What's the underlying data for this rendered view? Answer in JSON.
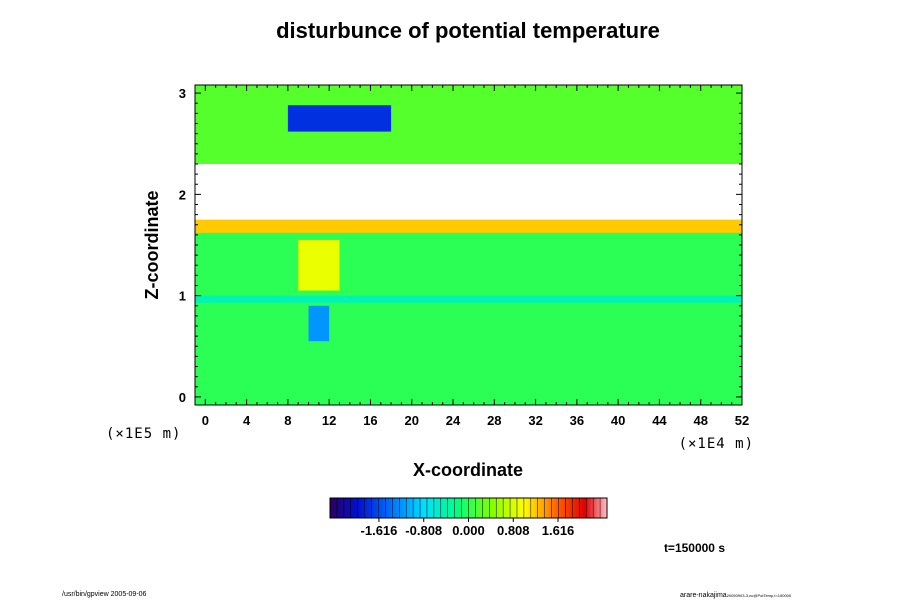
{
  "chart_data": {
    "type": "heatmap",
    "title": "disturbunce of potential temperature",
    "xlabel": "X-coordinate",
    "ylabel": "Z-coordinate",
    "x_scale_label": "(×1E4 m)",
    "y_scale_label": "(×1E5 m)",
    "xlim": [
      -1,
      52
    ],
    "ylim": [
      -0.08,
      3.08
    ],
    "x_ticks": [
      0,
      4,
      8,
      12,
      16,
      20,
      24,
      28,
      32,
      36,
      40,
      44,
      48,
      52
    ],
    "y_ticks": [
      0,
      1,
      2,
      3
    ],
    "colorbar": {
      "ticks": [
        "-1.616",
        "-0.808",
        "0.000",
        "0.808",
        "1.616"
      ],
      "min": -2.5,
      "max": 2.5
    },
    "background_value": 0.0,
    "regions": [
      {
        "x": [
          -1,
          52
        ],
        "z": [
          0.93,
          1.0
        ],
        "value": -0.45
      },
      {
        "x": [
          -1,
          52
        ],
        "z": [
          1.62,
          1.75
        ],
        "value": 1.2
      },
      {
        "x": [
          -1,
          52
        ],
        "z": [
          1.75,
          2.3
        ],
        "value": 3.0
      },
      {
        "x": [
          -1,
          52
        ],
        "z": [
          2.3,
          3.08
        ],
        "value": 0.2
      },
      {
        "x": [
          8,
          18
        ],
        "z": [
          2.62,
          2.88
        ],
        "value": -1.8
      },
      {
        "x": [
          9,
          13
        ],
        "z": [
          1.05,
          1.55
        ],
        "value": 0.9
      },
      {
        "x": [
          10,
          12
        ],
        "z": [
          0.55,
          0.9
        ],
        "value": -1.2
      }
    ],
    "annotations": {
      "time": "t=150000 s"
    }
  },
  "footer": {
    "left": "/usr/bin/gpview 2005-09-06",
    "right": "arare-nakajima",
    "right_sub": "20050903-3.nc@PotTemp,t=150000"
  }
}
